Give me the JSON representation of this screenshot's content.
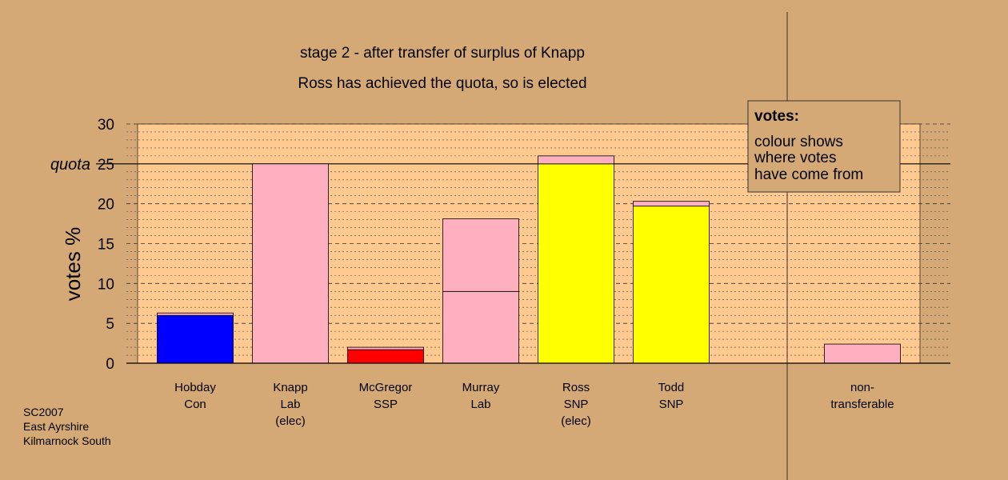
{
  "chart_data": {
    "type": "bar",
    "stacked": true,
    "title": "stage 2 - after transfer of surplus of Knapp",
    "subtitle": "Ross has achieved the quota, so is elected",
    "ylabel": "votes %",
    "ylim": [
      0,
      30
    ],
    "yticks": [
      0,
      5,
      10,
      15,
      20,
      25,
      30
    ],
    "quota": {
      "label": "quota",
      "value": 25
    },
    "grid": true,
    "categories": [
      {
        "name": "Hobday",
        "party": "Con",
        "note": ""
      },
      {
        "name": "Knapp",
        "party": "Lab",
        "note": "(elec)"
      },
      {
        "name": "McGregor",
        "party": "SSP",
        "note": ""
      },
      {
        "name": "Murray",
        "party": "Lab",
        "note": ""
      },
      {
        "name": "Ross",
        "party": "SNP",
        "note": "(elec)"
      },
      {
        "name": "Todd",
        "party": "SNP",
        "note": ""
      },
      {
        "name": "non-",
        "party": "transferable",
        "note": ""
      }
    ],
    "series": [
      {
        "color": "#0000FF",
        "values": [
          6.0,
          0,
          0,
          0,
          0,
          0,
          0
        ]
      },
      {
        "color": "#FF0000",
        "values": [
          0,
          0,
          1.7,
          0,
          0,
          0,
          0
        ]
      },
      {
        "color": "#FFFF00",
        "values": [
          0,
          0,
          0,
          0,
          25.0,
          19.7,
          0
        ]
      },
      {
        "color": "#FFB0C0",
        "values": [
          0,
          25.0,
          0,
          9.0,
          0,
          0,
          0
        ]
      },
      {
        "color": "#FFB0C0",
        "values": [
          0.3,
          0,
          0.3,
          9.1,
          1.0,
          0.6,
          2.4
        ]
      }
    ],
    "legend": {
      "title": "votes:",
      "lines": [
        "colour shows",
        "where votes",
        "have come from"
      ],
      "placement": "top-right"
    }
  },
  "footer": {
    "line1": "SC2007",
    "line2": "East Ayrshire",
    "line3": "Kilmarnock South"
  },
  "colors": {
    "background": "#D4A976",
    "plot_area": "#FFC990",
    "pink": "#FFB0C0",
    "blue": "#0000FF",
    "red": "#FF0000",
    "yellow": "#FFFF00"
  }
}
